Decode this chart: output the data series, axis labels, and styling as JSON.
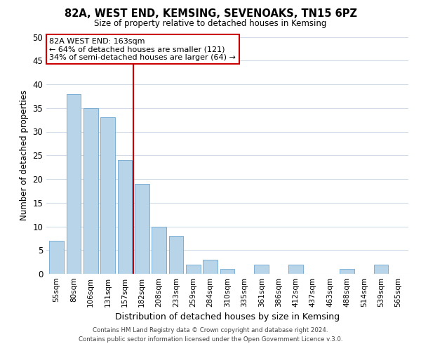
{
  "title": "82A, WEST END, KEMSING, SEVENOAKS, TN15 6PZ",
  "subtitle": "Size of property relative to detached houses in Kemsing",
  "xlabel": "Distribution of detached houses by size in Kemsing",
  "ylabel": "Number of detached properties",
  "bar_labels": [
    "55sqm",
    "80sqm",
    "106sqm",
    "131sqm",
    "157sqm",
    "182sqm",
    "208sqm",
    "233sqm",
    "259sqm",
    "284sqm",
    "310sqm",
    "335sqm",
    "361sqm",
    "386sqm",
    "412sqm",
    "437sqm",
    "463sqm",
    "488sqm",
    "514sqm",
    "539sqm",
    "565sqm"
  ],
  "bar_values": [
    7,
    38,
    35,
    33,
    24,
    19,
    10,
    8,
    2,
    3,
    1,
    0,
    2,
    0,
    2,
    0,
    0,
    1,
    0,
    2,
    0
  ],
  "bar_color": "#b8d4e8",
  "bar_edge_color": "#7bafd4",
  "vline_x_index": 4.5,
  "vline_color": "#cc0000",
  "ylim": [
    0,
    50
  ],
  "yticks": [
    0,
    5,
    10,
    15,
    20,
    25,
    30,
    35,
    40,
    45,
    50
  ],
  "annotation_title": "82A WEST END: 163sqm",
  "annotation_line1": "← 64% of detached houses are smaller (121)",
  "annotation_line2": "34% of semi-detached houses are larger (64) →",
  "annotation_box_color": "#ffffff",
  "annotation_box_edge": "#cc0000",
  "footer_line1": "Contains HM Land Registry data © Crown copyright and database right 2024.",
  "footer_line2": "Contains public sector information licensed under the Open Government Licence v.3.0.",
  "background_color": "#ffffff",
  "grid_color": "#d0dde8"
}
